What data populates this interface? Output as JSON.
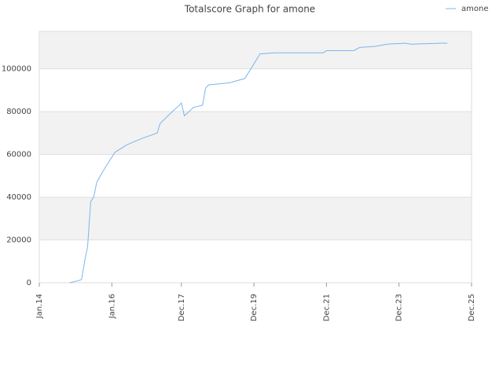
{
  "chart_data": {
    "type": "line",
    "title": "Totalscore Graph for amone",
    "x": [
      "2014-11",
      "2015-02",
      "2015-03",
      "2015-04",
      "2015-05",
      "2015-06",
      "2015-07",
      "2015-08",
      "2015-10",
      "2015-12",
      "2016-02",
      "2016-06",
      "2016-11",
      "2017-04",
      "2017-05",
      "2017-09",
      "2017-11",
      "2017-12",
      "2018-01",
      "2018-04",
      "2018-07",
      "2018-08",
      "2018-09",
      "2019-04",
      "2019-09",
      "2019-11",
      "2020-02",
      "2020-07",
      "2021-11",
      "2021-12",
      "2022-09",
      "2022-11",
      "2023-04",
      "2023-08",
      "2024-02",
      "2024-04",
      "2025-02",
      "2025-04"
    ],
    "series": [
      {
        "name": "amone",
        "color": "#7cb5ec",
        "values": [
          0,
          1000,
          1500,
          10000,
          17000,
          38000,
          40000,
          47000,
          52000,
          56500,
          61000,
          64500,
          67500,
          70000,
          74500,
          80000,
          82500,
          84000,
          78000,
          82000,
          83000,
          91000,
          92500,
          93500,
          95500,
          100000,
          107000,
          107500,
          107500,
          108500,
          108500,
          110000,
          110500,
          111500,
          112000,
          111500,
          112000,
          112000
        ]
      }
    ],
    "xlim": [
      "2014-01",
      "2025-12"
    ],
    "xticks": [
      {
        "value": "2014-01",
        "label": "Jan.14"
      },
      {
        "value": "2016-01",
        "label": "Jan.16"
      },
      {
        "value": "2017-12",
        "label": "Dec.17"
      },
      {
        "value": "2019-12",
        "label": "Dec.19"
      },
      {
        "value": "2021-12",
        "label": "Dec.21"
      },
      {
        "value": "2023-12",
        "label": "Dec.23"
      },
      {
        "value": "2025-12",
        "label": "Dec.25"
      }
    ],
    "ylim": [
      0,
      117500
    ],
    "yticks": [
      0,
      20000,
      40000,
      60000,
      80000,
      100000
    ],
    "grid": true,
    "legend": "top-right"
  }
}
